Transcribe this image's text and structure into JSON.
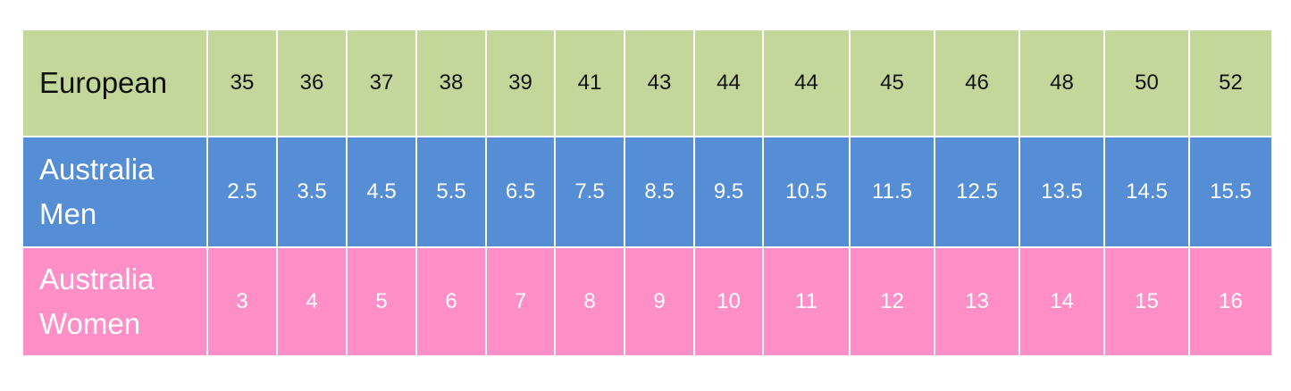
{
  "table": {
    "rows": [
      {
        "label": "European",
        "values": [
          35,
          36,
          37,
          38,
          39,
          41,
          43,
          44,
          44,
          45,
          46,
          48,
          50,
          52
        ]
      },
      {
        "label": "Australia Men",
        "values": [
          2.5,
          3.5,
          4.5,
          5.5,
          6.5,
          7.5,
          8.5,
          9.5,
          10.5,
          11.5,
          12.5,
          13.5,
          14.5,
          15.5
        ]
      },
      {
        "label": "Australia Women",
        "values": [
          3,
          4,
          5,
          6,
          7,
          8,
          9,
          10,
          11,
          12,
          13,
          14,
          15,
          16
        ]
      }
    ]
  }
}
